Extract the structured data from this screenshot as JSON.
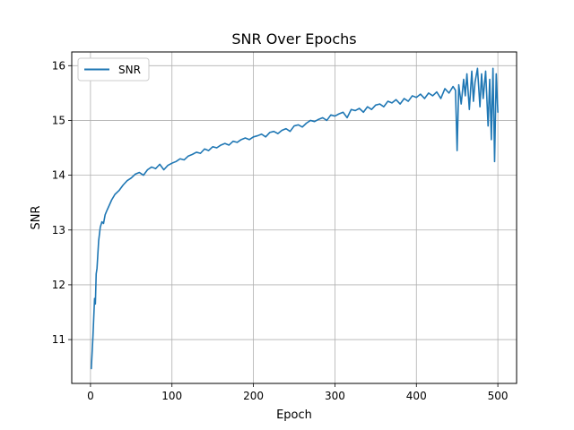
{
  "chart_data": {
    "type": "line",
    "title": "SNR Over Epochs",
    "xlabel": "Epoch",
    "ylabel": "SNR",
    "xlim": [
      -23,
      523
    ],
    "ylim": [
      10.2,
      16.25
    ],
    "x_ticks": [
      0,
      100,
      200,
      300,
      400,
      500
    ],
    "y_ticks": [
      11,
      12,
      13,
      14,
      15,
      16
    ],
    "grid": true,
    "legend": {
      "position": "top-left"
    },
    "series": [
      {
        "name": "SNR",
        "color": "#1f77b4",
        "x": [
          1,
          3,
          5,
          6,
          7,
          8,
          10,
          12,
          14,
          16,
          18,
          20,
          23,
          26,
          30,
          35,
          40,
          45,
          50,
          55,
          60,
          65,
          70,
          75,
          80,
          85,
          90,
          95,
          100,
          105,
          110,
          115,
          120,
          125,
          130,
          135,
          140,
          145,
          150,
          155,
          160,
          165,
          170,
          175,
          180,
          185,
          190,
          195,
          200,
          205,
          210,
          215,
          220,
          225,
          230,
          235,
          240,
          245,
          250,
          255,
          260,
          265,
          270,
          275,
          280,
          285,
          290,
          295,
          300,
          305,
          310,
          315,
          320,
          325,
          330,
          335,
          340,
          345,
          350,
          355,
          360,
          365,
          370,
          375,
          380,
          385,
          390,
          395,
          400,
          405,
          410,
          415,
          420,
          425,
          430,
          435,
          440,
          445,
          448,
          450,
          452,
          455,
          458,
          460,
          462,
          465,
          468,
          470,
          472,
          475,
          478,
          480,
          482,
          485,
          488,
          490,
          492,
          494,
          496,
          498,
          500
        ],
        "y": [
          10.47,
          11.05,
          11.75,
          11.65,
          12.2,
          12.3,
          12.8,
          13.05,
          13.15,
          13.12,
          13.28,
          13.35,
          13.45,
          13.55,
          13.65,
          13.72,
          13.82,
          13.9,
          13.95,
          14.02,
          14.05,
          14.0,
          14.1,
          14.15,
          14.12,
          14.2,
          14.1,
          14.18,
          14.22,
          14.25,
          14.3,
          14.28,
          14.35,
          14.38,
          14.42,
          14.4,
          14.48,
          14.45,
          14.52,
          14.5,
          14.55,
          14.58,
          14.55,
          14.62,
          14.6,
          14.65,
          14.68,
          14.65,
          14.7,
          14.72,
          14.75,
          14.7,
          14.78,
          14.8,
          14.76,
          14.82,
          14.85,
          14.8,
          14.9,
          14.92,
          14.88,
          14.95,
          15.0,
          14.98,
          15.02,
          15.05,
          15.0,
          15.1,
          15.08,
          15.12,
          15.15,
          15.05,
          15.2,
          15.18,
          15.22,
          15.15,
          15.25,
          15.2,
          15.28,
          15.3,
          15.25,
          15.35,
          15.32,
          15.38,
          15.3,
          15.4,
          15.35,
          15.45,
          15.42,
          15.48,
          15.4,
          15.5,
          15.45,
          15.52,
          15.4,
          15.58,
          15.5,
          15.62,
          15.55,
          14.45,
          15.65,
          15.3,
          15.75,
          15.45,
          15.85,
          15.2,
          15.9,
          15.35,
          15.7,
          15.95,
          15.25,
          15.85,
          15.4,
          15.9,
          14.9,
          15.75,
          14.65,
          15.95,
          14.25,
          15.85,
          15.15
        ]
      }
    ]
  }
}
